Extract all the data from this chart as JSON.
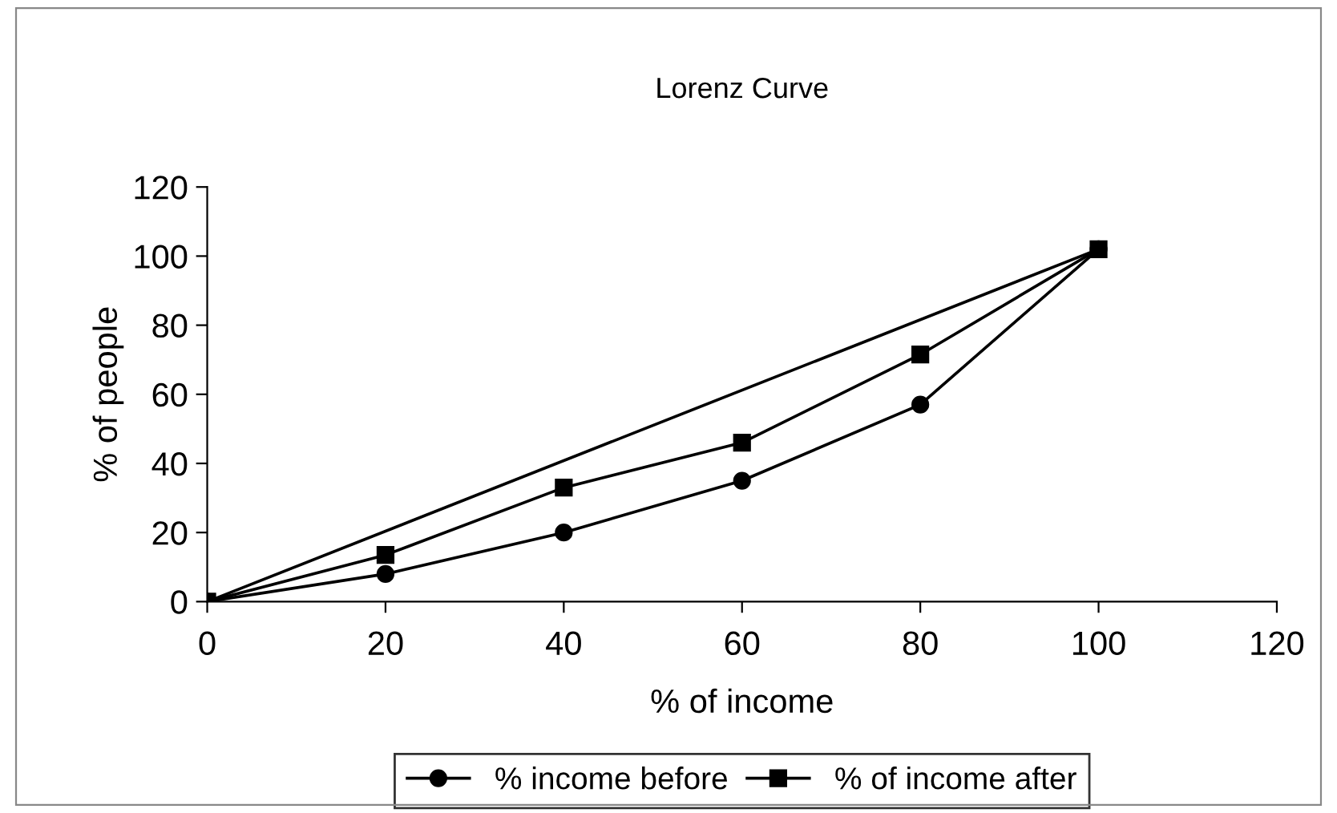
{
  "chart_data": {
    "type": "line",
    "title": "Lorenz Curve",
    "xlabel": "% of income",
    "ylabel": "% of people",
    "x": [
      0,
      20,
      40,
      60,
      80,
      100
    ],
    "series": [
      {
        "name": "% income before",
        "color": "#000000",
        "marker": "circle",
        "values": [
          0,
          8,
          20,
          35,
          57,
          102
        ]
      },
      {
        "name": "% of income after",
        "color": "#000000",
        "marker": "square",
        "values": [
          0,
          13.5,
          33,
          46,
          71.5,
          102
        ]
      },
      {
        "color": "#000000",
        "marker": "none",
        "x": [
          0,
          100
        ],
        "values": [
          0,
          102
        ]
      }
    ],
    "xlim": [
      0,
      120
    ],
    "xticks": [
      0,
      20,
      40,
      60,
      80,
      100,
      120
    ],
    "ylim": [
      0,
      120
    ],
    "yticks": [
      0,
      20,
      40,
      60,
      80,
      100,
      120
    ],
    "grid": false,
    "legend": "bottom",
    "line_style": "solid"
  }
}
